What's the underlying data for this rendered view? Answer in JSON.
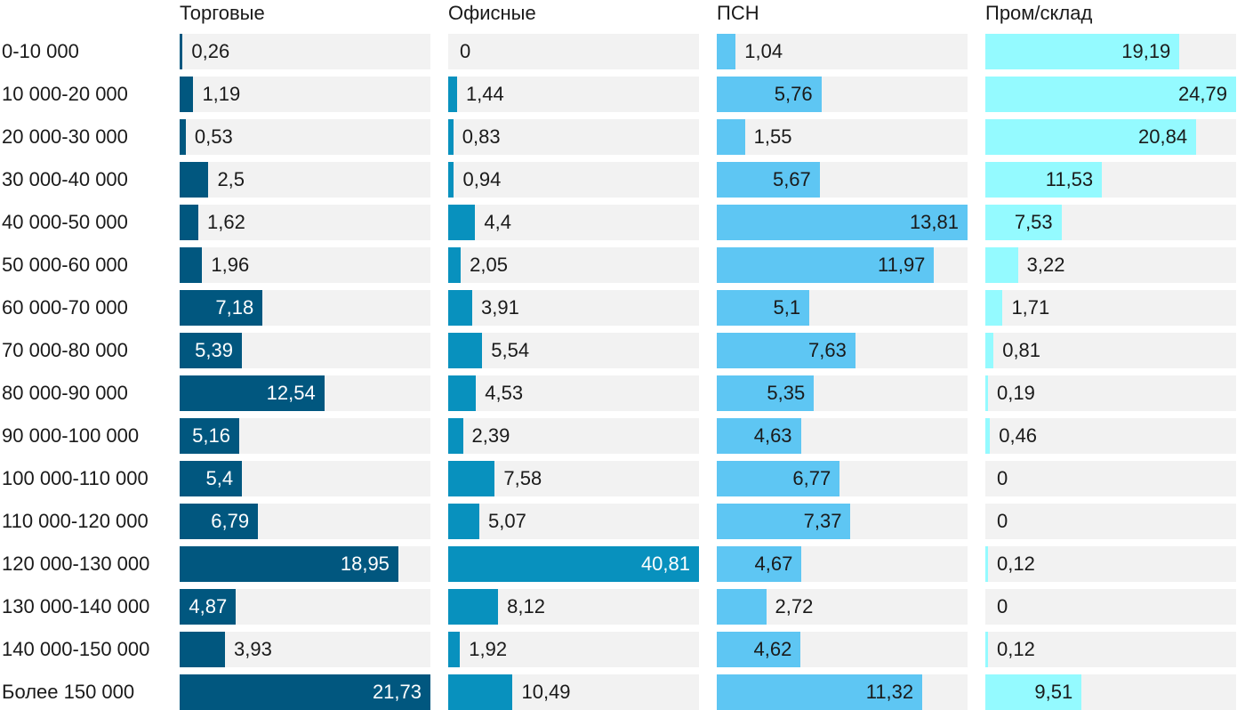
{
  "chart_data": {
    "type": "bar",
    "orientation": "horizontal",
    "title": "",
    "categories": [
      "0-10 000",
      "10 000-20 000",
      "20 000-30 000",
      "30 000-40 000",
      "40 000-50 000",
      "50 000-60 000",
      "60 000-70 000",
      "70 000-80 000",
      "80 000-90 000",
      "90 000-100 000",
      "100 000-110 000",
      "110 000-120 000",
      "120 000-130 000",
      "130 000-140 000",
      "140 000-150 000",
      "Более 150 000"
    ],
    "series": [
      {
        "name": "Торговые",
        "color": "#01577f",
        "xlim": [
          0,
          21.73
        ],
        "values": [
          0.26,
          1.19,
          0.53,
          2.5,
          1.62,
          1.96,
          7.18,
          5.39,
          12.54,
          5.16,
          5.4,
          6.79,
          18.95,
          4.87,
          3.93,
          21.73
        ],
        "labels": [
          "0,26",
          "1,19",
          "0,53",
          "2,5",
          "1,62",
          "1,96",
          "7,18",
          "5,39",
          "12,54",
          "5,16",
          "5,4",
          "6,79",
          "18,95",
          "4,87",
          "3,93",
          "21,73"
        ]
      },
      {
        "name": "Офисные",
        "color": "#0891be",
        "xlim": [
          0,
          40.81
        ],
        "values": [
          0,
          1.44,
          0.83,
          0.94,
          4.4,
          2.05,
          3.91,
          5.54,
          4.53,
          2.39,
          7.58,
          5.07,
          40.81,
          8.12,
          1.92,
          10.49
        ],
        "labels": [
          "0",
          "1,44",
          "0,83",
          "0,94",
          "4,4",
          "2,05",
          "3,91",
          "5,54",
          "4,53",
          "2,39",
          "7,58",
          "5,07",
          "40,81",
          "8,12",
          "1,92",
          "10,49"
        ]
      },
      {
        "name": "ПСН",
        "color": "#5ec6f3",
        "xlim": [
          0,
          13.81
        ],
        "values": [
          1.04,
          5.76,
          1.55,
          5.67,
          13.81,
          11.97,
          5.1,
          7.63,
          5.35,
          4.63,
          6.77,
          7.37,
          4.67,
          2.72,
          4.62,
          11.32
        ],
        "labels": [
          "1,04",
          "5,76",
          "1,55",
          "5,67",
          "13,81",
          "11,97",
          "5,1",
          "7,63",
          "5,35",
          "4,63",
          "6,77",
          "7,37",
          "4,67",
          "2,72",
          "4,62",
          "11,32"
        ]
      },
      {
        "name": "Пром/склад",
        "color": "#94faff",
        "xlim": [
          0,
          24.79
        ],
        "values": [
          19.19,
          24.79,
          20.84,
          11.53,
          7.53,
          3.22,
          1.71,
          0.81,
          0.19,
          0.46,
          0,
          0,
          0.12,
          0,
          0.12,
          9.51
        ],
        "labels": [
          "19,19",
          "24,79",
          "20,84",
          "11,53",
          "7,53",
          "3,22",
          "1,71",
          "0,81",
          "0,19",
          "0,46",
          "0",
          "0",
          "0,12",
          "0",
          "0,12",
          "9,51"
        ]
      }
    ],
    "xlabel": "",
    "ylabel": "",
    "grid": false,
    "legend": "none"
  }
}
